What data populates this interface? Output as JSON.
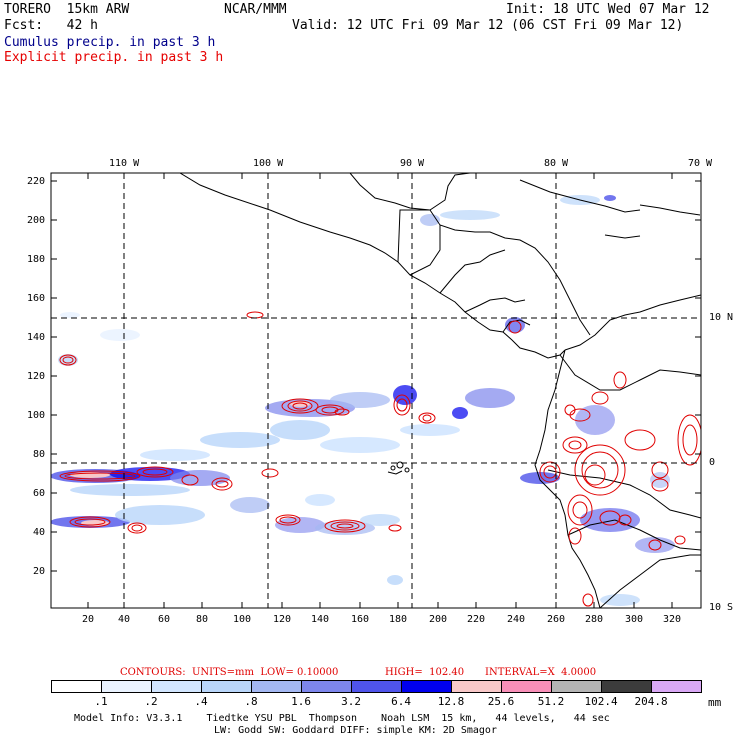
{
  "header": {
    "model": "TORERO  15km ARW",
    "org": "NCAR/MMM",
    "init": "Init: 18 UTC Wed 07 Mar 12",
    "fcst": "Fcst:   42 h",
    "valid": "Valid: 12 UTC Fri 09 Mar 12 (06 CST Fri 09 Mar 12)",
    "legend_cumulus": "Cumulus precip. in past 3 h",
    "legend_explicit": "Explicit precip. in past 3 h"
  },
  "colors": {
    "cumulus_text": "#00008b",
    "explicit_text": "#e60000",
    "contour": "#e00000",
    "coast": "#000000"
  },
  "axes": {
    "top_lon_labels": [
      "110 W",
      "100 W",
      "90 W",
      "80 W",
      "70 W"
    ],
    "right_lat_labels": [
      "10 N",
      "0",
      "10 S"
    ],
    "y_ticks": [
      "220",
      "200",
      "180",
      "160",
      "140",
      "120",
      "100",
      "80",
      "60",
      "40",
      "20"
    ],
    "x_ticks": [
      "20",
      "40",
      "60",
      "80",
      "100",
      "120",
      "140",
      "160",
      "180",
      "200",
      "220",
      "240",
      "260",
      "280",
      "300",
      "320"
    ]
  },
  "contour_info": {
    "contours": "CONTOURS:  UNITS=mm  LOW= 0.10000",
    "high": "HIGH=  102.40",
    "interval": "INTERVAL=X  4.0000"
  },
  "colorbar": {
    "labels": [
      ".1",
      ".2",
      ".4",
      ".8",
      "1.6",
      "3.2",
      "6.4",
      "12.8",
      "25.6",
      "51.2",
      "102.4",
      "204.8"
    ],
    "units": "mm",
    "colors": [
      "#ffffff",
      "#eaf3ff",
      "#d2e6ff",
      "#b9d6fa",
      "#a4b8f2",
      "#7d86ec",
      "#4f54ea",
      "#0000ee",
      "#f8c8c8",
      "#f88fb8",
      "#b4b4b4",
      "#3c3c3c",
      "#d9a8f5"
    ]
  },
  "footer": {
    "line1": "Model Info: V3.3.1    Tiedtke YSU PBL  Thompson    Noah LSM  15 km,   44 levels,   44 sec",
    "line2": "LW: Godd SW: Goddard DIFF: simple KM: 2D Smagor"
  }
}
